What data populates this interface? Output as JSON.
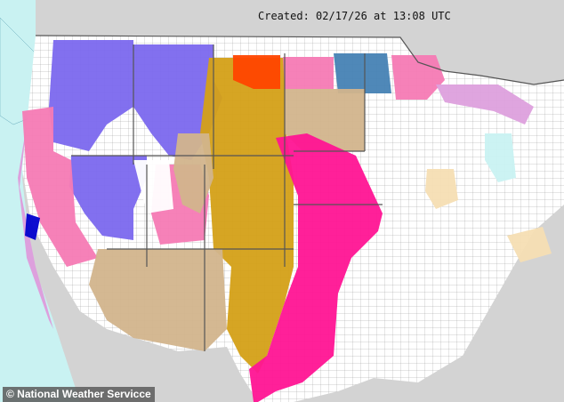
{
  "header": {
    "created_text": "Created: 02/17/26 at 13:08 UTC"
  },
  "credit": {
    "text": "© National Weather Servicce"
  },
  "colors": {
    "ocean": "#c9f2f2",
    "foreign_land": "#d3d3d3",
    "no_alert": "#ffffff",
    "purple": "#7b68ee",
    "pink": "#f57ab4",
    "tan": "#d2b48c",
    "goldenrod": "#d4a017",
    "magenta": "#ff1493",
    "orange_red": "#ff4500",
    "steel_blue": "#4682b4",
    "plum": "#dda0dd",
    "navy": "#0000cd",
    "wheat": "#f5deb3"
  }
}
